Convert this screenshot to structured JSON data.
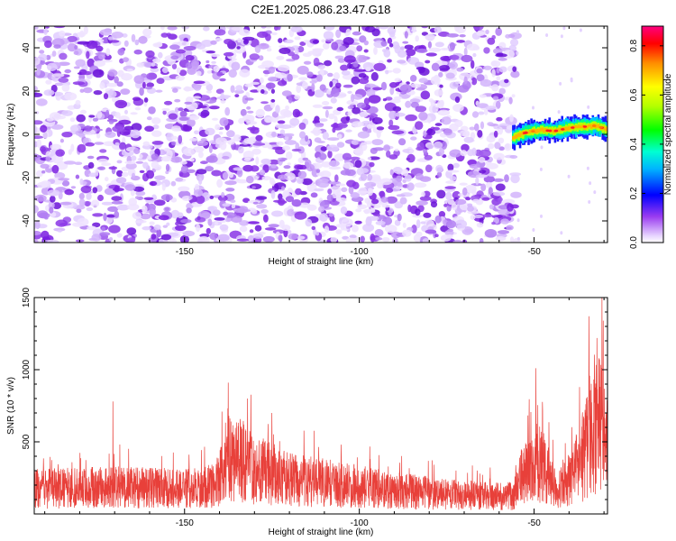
{
  "title": "C2E1.2025.086.23.47.G18",
  "chart_data": [
    {
      "type": "heatmap",
      "xlabel": "Height of straight line (km)",
      "ylabel": "Frequency (Hz)",
      "xlim": [
        -193,
        -29
      ],
      "ylim": [
        -50,
        50
      ],
      "xticks": [
        -150,
        -100,
        -50
      ],
      "yticks": [
        -40,
        -20,
        0,
        20,
        40
      ],
      "colorbar": {
        "label": "Normalized spectral amplitude",
        "range": [
          0,
          0.88
        ],
        "ticks": [
          0,
          0.2,
          0.4,
          0.6,
          0.8
        ]
      },
      "noise_region_x": [
        -193,
        -56
      ],
      "signal_track": {
        "x": [
          -56,
          -52,
          -48,
          -44,
          -40,
          -36,
          -32,
          -29
        ],
        "y": [
          -1.5,
          1,
          2,
          1.5,
          3,
          3.5,
          4,
          2
        ]
      },
      "grid": false
    },
    {
      "type": "line",
      "xlabel": "Height of straight line (km)",
      "ylabel": "SNR (10 * v/v)",
      "xlim": [
        -193,
        -29
      ],
      "ylim": [
        0,
        1500
      ],
      "xticks": [
        -150,
        -100,
        -50
      ],
      "yticks": [
        500,
        1000,
        1500
      ],
      "series_color": "#e8403a",
      "envelope": {
        "x": [
          -193,
          -180,
          -170,
          -160,
          -150,
          -145,
          -141,
          -138,
          -135,
          -130,
          -125,
          -120,
          -110,
          -100,
          -90,
          -80,
          -70,
          -60,
          -56,
          -54,
          -52,
          -50,
          -48,
          -46,
          -44,
          -42,
          -40,
          -38,
          -36,
          -34,
          -32,
          -30,
          -29
        ],
        "y": [
          240,
          250,
          255,
          250,
          245,
          250,
          280,
          520,
          540,
          430,
          380,
          330,
          300,
          260,
          225,
          200,
          180,
          170,
          170,
          330,
          420,
          500,
          480,
          360,
          270,
          250,
          320,
          420,
          560,
          780,
          950,
          700,
          820
        ]
      },
      "spikes": [
        {
          "x": -170.5,
          "y": 780
        },
        {
          "x": -137.5,
          "y": 910
        },
        {
          "x": -132,
          "y": 800
        },
        {
          "x": -125,
          "y": 700
        },
        {
          "x": -49.5,
          "y": 1010
        },
        {
          "x": -37,
          "y": 880
        },
        {
          "x": -31.5,
          "y": 1080
        },
        {
          "x": -30.6,
          "y": 1500
        },
        {
          "x": -30.2,
          "y": 1340
        }
      ],
      "grid": false
    }
  ]
}
